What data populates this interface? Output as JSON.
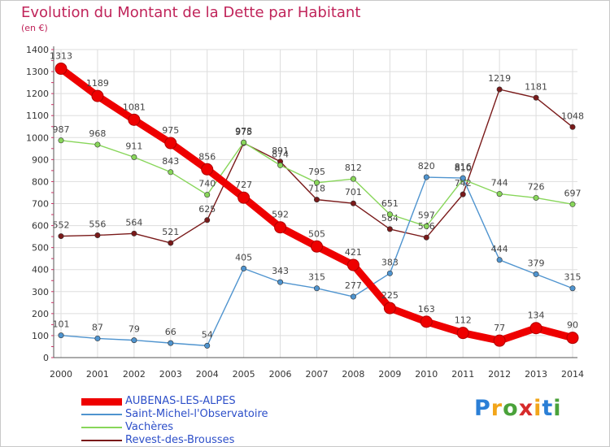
{
  "title": "Evolution du Montant de la Dette par Habitant",
  "subtitle": "(en €)",
  "brand": {
    "letters": [
      "P",
      "r",
      "o",
      "x",
      "i",
      "t",
      "i"
    ],
    "colors": [
      "#2b7fd6",
      "#f2a51a",
      "#4aa23a",
      "#d62b2b",
      "#f2a51a",
      "#2b7fd6",
      "#4aa23a"
    ]
  },
  "chart_data": {
    "type": "line",
    "title": "Evolution du Montant de la Dette par Habitant",
    "ylabel": "(en €)",
    "xlabel": "",
    "x": [
      "2000",
      "2001",
      "2002",
      "2003",
      "2004",
      "2005",
      "2006",
      "2007",
      "2008",
      "2009",
      "2010",
      "2011",
      "2012",
      "2013",
      "2014"
    ],
    "ylim": [
      0,
      1400
    ],
    "yticks": [
      "0",
      "100",
      "200",
      "300",
      "400",
      "500",
      "600",
      "700",
      "800",
      "900",
      "1000",
      "1100",
      "1200",
      "1300",
      "1400"
    ],
    "grid": true,
    "legend_position": "bottom-left",
    "series": [
      {
        "name": "Revest-des-Brousses",
        "color": "#7a1a1a",
        "values": [
          552,
          556,
          564,
          521,
          625,
          975,
          891,
          718,
          701,
          584,
          546,
          742,
          1219,
          1181,
          1048
        ],
        "labels": [
          "552",
          "556",
          "564",
          "521",
          "625",
          "975",
          "891",
          "718",
          "701",
          "584",
          "546",
          "742",
          "1219",
          "1181",
          "1048"
        ]
      },
      {
        "name": "Vachères",
        "color": "#88d65a",
        "values": [
          987,
          968,
          911,
          843,
          740,
          978,
          874,
          795,
          812,
          651,
          597,
          810,
          744,
          726,
          697
        ],
        "labels": [
          "987",
          "968",
          "911",
          "843",
          "740",
          "978",
          "874",
          "795",
          "812",
          "651",
          "597",
          "810",
          "744",
          "726",
          "697"
        ]
      },
      {
        "name": "Saint-Michel-l'Observatoire",
        "color": "#4f94cf",
        "values": [
          101,
          87,
          79,
          66,
          54,
          405,
          343,
          315,
          277,
          383,
          820,
          816,
          444,
          379,
          315
        ],
        "labels": [
          "101",
          "87",
          "79",
          "66",
          "54",
          "405",
          "343",
          "315",
          "277",
          "383",
          "820",
          "816",
          "444",
          "379",
          "315"
        ]
      },
      {
        "name": "AUBENAS-LES-ALPES",
        "color": "#ee0000",
        "values": [
          1313,
          1189,
          1081,
          975,
          856,
          727,
          592,
          505,
          421,
          225,
          163,
          112,
          77,
          134,
          90
        ],
        "labels": [
          "1313",
          "1189",
          "1081",
          "975",
          "856",
          "727",
          "592",
          "505",
          "421",
          "225",
          "163",
          "112",
          "77",
          "134",
          "90"
        ]
      }
    ],
    "legend_order": [
      "AUBENAS-LES-ALPES",
      "Saint-Michel-l'Observatoire",
      "Vachères",
      "Revest-des-Brousses"
    ]
  }
}
